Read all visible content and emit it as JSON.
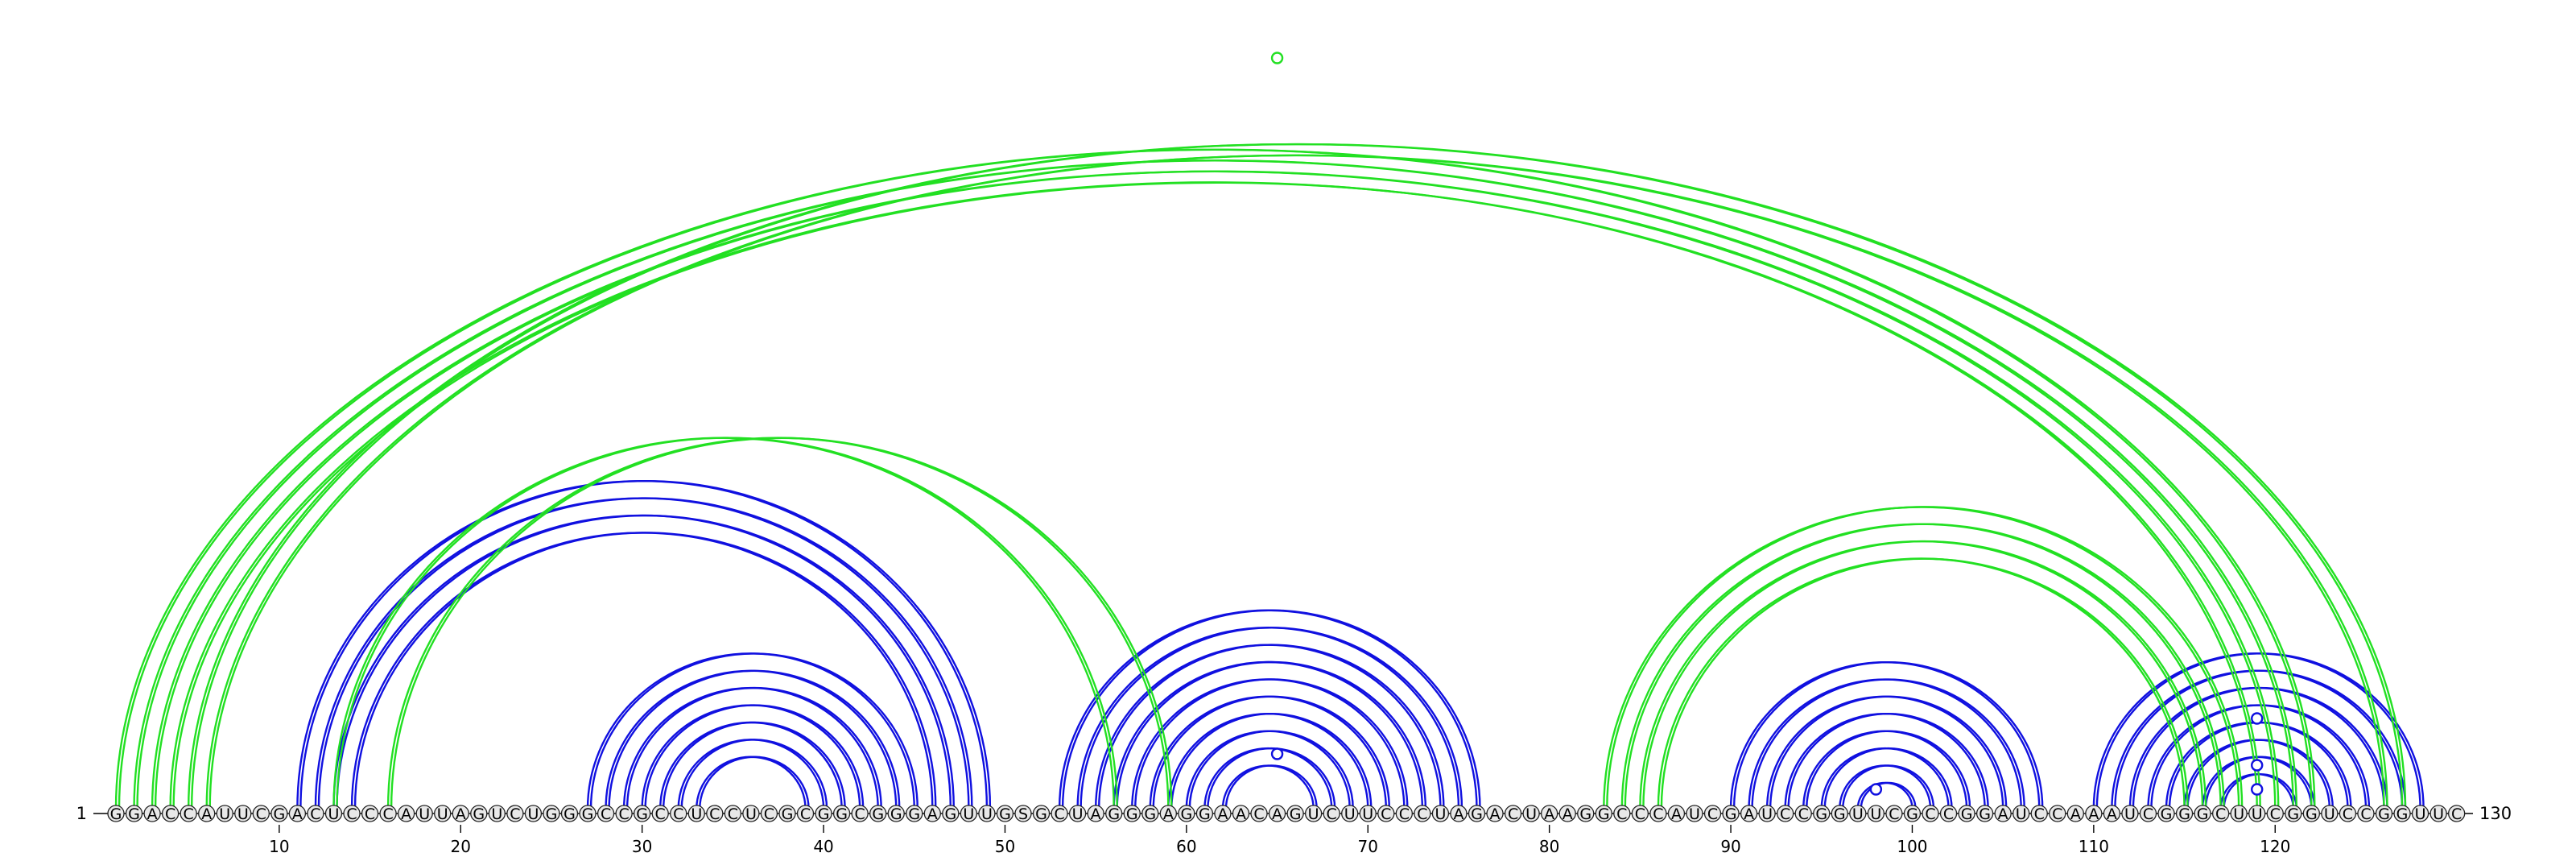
{
  "sequence": {
    "start_label": "1",
    "end_label": "130",
    "bases": "GGACCAUUCGACUCCCAUUAGUCUGGGCCGCCUCCUCGCGGCGGGAGUUGSGCUAGGGAGGAACAGUCUUCCCUAGACUAAGGCCCAUCGAUCCGGUUCGCCGGAUCCAAAUCGGGCUUCGGUCCGGUUC"
  },
  "axis": {
    "ticks": [
      10,
      20,
      30,
      40,
      50,
      60,
      70,
      80,
      90,
      100,
      110,
      120
    ]
  },
  "colors": {
    "inner_arcs": "#1010e0",
    "outer_arcs": "#22e022",
    "text": "#000000",
    "node_fill": "#e8e8e8"
  },
  "arcs": {
    "blue": [
      [
        11,
        49
      ],
      [
        12,
        48
      ],
      [
        13,
        47
      ],
      [
        14,
        46
      ],
      [
        27,
        45
      ],
      [
        28,
        44
      ],
      [
        29,
        43
      ],
      [
        30,
        42
      ],
      [
        31,
        41
      ],
      [
        32,
        40
      ],
      [
        33,
        39
      ],
      [
        53,
        76
      ],
      [
        54,
        75
      ],
      [
        55,
        74
      ],
      [
        56,
        73
      ],
      [
        57,
        72
      ],
      [
        58,
        71
      ],
      [
        59,
        70
      ],
      [
        60,
        69
      ],
      [
        61,
        68
      ],
      [
        62,
        67
      ],
      [
        90,
        107
      ],
      [
        91,
        106
      ],
      [
        92,
        105
      ],
      [
        93,
        104
      ],
      [
        94,
        103
      ],
      [
        95,
        102
      ],
      [
        96,
        101
      ],
      [
        97,
        100
      ],
      [
        110,
        128
      ],
      [
        111,
        127
      ],
      [
        112,
        126
      ],
      [
        113,
        125
      ],
      [
        114,
        124
      ],
      [
        115,
        123
      ],
      [
        116,
        122
      ],
      [
        117,
        121
      ]
    ],
    "green": [
      [
        1,
        122
      ],
      [
        2,
        121
      ],
      [
        3,
        120
      ],
      [
        4,
        119
      ],
      [
        5,
        127
      ],
      [
        6,
        126
      ],
      [
        13,
        56
      ],
      [
        16,
        59
      ],
      [
        83,
        118
      ],
      [
        84,
        117
      ],
      [
        85,
        116
      ],
      [
        86,
        115
      ]
    ],
    "markers": [
      [
        65,
        "blue"
      ],
      [
        65,
        "green"
      ],
      [
        98,
        "blue"
      ],
      [
        119,
        "blue"
      ],
      [
        119,
        "blue"
      ],
      [
        119,
        "blue"
      ]
    ]
  }
}
